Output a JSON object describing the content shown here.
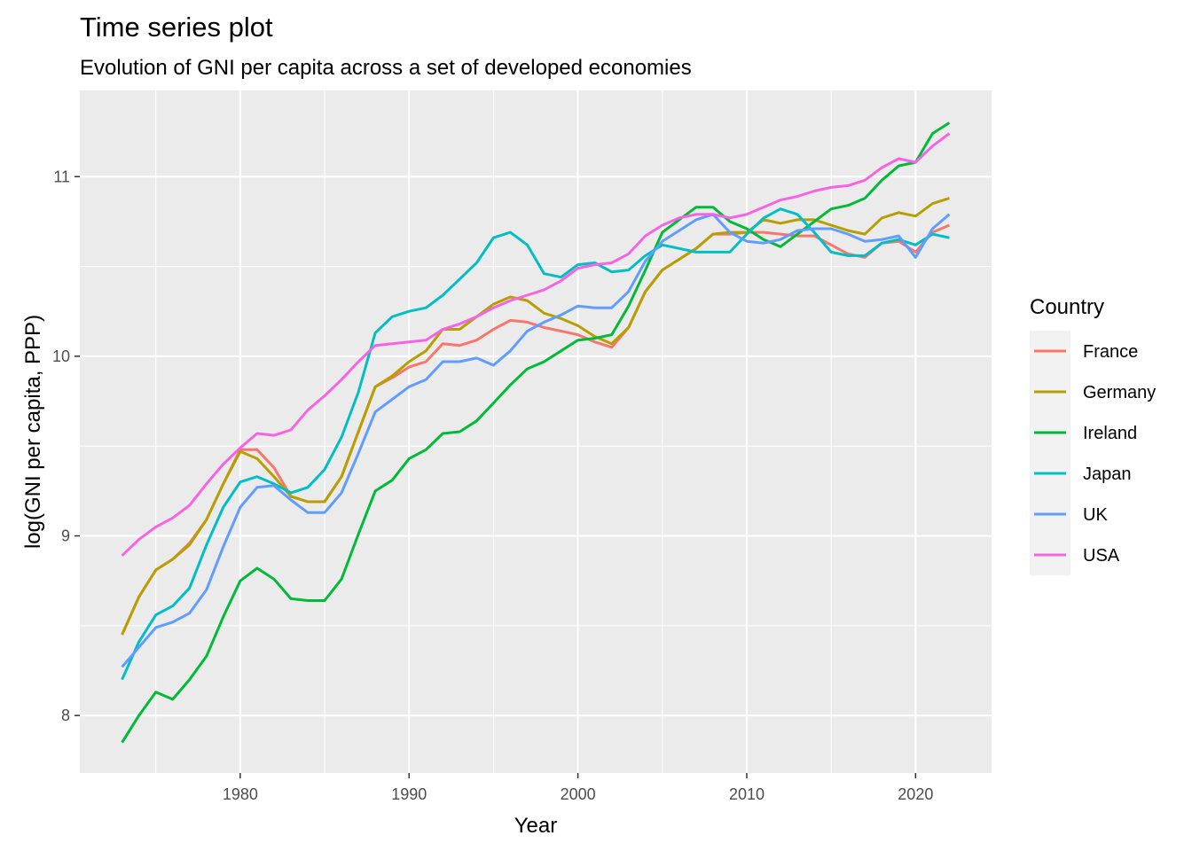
{
  "chart_data": {
    "type": "line",
    "title": "Time series plot",
    "subtitle": "Evolution of GNI per capita across a set of developed economies",
    "xlabel": "Year",
    "ylabel": "log(GNI per capita, PPP)",
    "xlim": [
      1970.5,
      2024.5
    ],
    "ylim": [
      7.68,
      11.48
    ],
    "x_ticks": [
      1980,
      1990,
      2000,
      2010,
      2020
    ],
    "y_ticks": [
      8,
      9,
      10,
      11
    ],
    "grid": true,
    "legend": {
      "title": "Country",
      "placement": "right"
    },
    "x": [
      1973,
      1974,
      1975,
      1976,
      1977,
      1978,
      1979,
      1980,
      1981,
      1982,
      1983,
      1984,
      1985,
      1986,
      1987,
      1988,
      1989,
      1990,
      1991,
      1992,
      1993,
      1994,
      1995,
      1996,
      1997,
      1998,
      1999,
      2000,
      2001,
      2002,
      2003,
      2004,
      2005,
      2006,
      2007,
      2008,
      2009,
      2010,
      2011,
      2012,
      2013,
      2014,
      2015,
      2016,
      2017,
      2018,
      2019,
      2020,
      2021,
      2022
    ],
    "series": [
      {
        "name": "France",
        "color": "#F8766D",
        "values": [
          8.45,
          8.66,
          8.81,
          8.87,
          8.96,
          9.09,
          9.29,
          9.48,
          9.48,
          9.38,
          9.22,
          9.19,
          9.19,
          9.33,
          9.58,
          9.83,
          9.88,
          9.94,
          9.97,
          10.07,
          10.06,
          10.09,
          10.15,
          10.2,
          10.19,
          10.16,
          10.14,
          10.12,
          10.08,
          10.05,
          10.16,
          10.36,
          10.48,
          10.54,
          10.6,
          10.68,
          10.68,
          10.69,
          10.69,
          10.68,
          10.67,
          10.67,
          10.62,
          10.57,
          10.55,
          10.63,
          10.64,
          10.58,
          10.69,
          10.73
        ]
      },
      {
        "name": "Germany",
        "color": "#B79F00",
        "values": [
          8.45,
          8.66,
          8.81,
          8.87,
          8.95,
          9.09,
          9.29,
          9.47,
          9.43,
          9.33,
          9.22,
          9.19,
          9.19,
          9.33,
          9.58,
          9.83,
          9.89,
          9.97,
          10.03,
          10.15,
          10.15,
          10.22,
          10.29,
          10.33,
          10.31,
          10.24,
          10.21,
          10.17,
          10.11,
          10.07,
          10.16,
          10.36,
          10.48,
          10.54,
          10.6,
          10.68,
          10.69,
          10.69,
          10.76,
          10.74,
          10.76,
          10.76,
          10.73,
          10.7,
          10.68,
          10.77,
          10.8,
          10.78,
          10.85,
          10.88
        ]
      },
      {
        "name": "Ireland",
        "color": "#00BA38",
        "values": [
          7.85,
          8.0,
          8.13,
          8.09,
          8.2,
          8.33,
          8.55,
          8.75,
          8.82,
          8.76,
          8.65,
          8.64,
          8.64,
          8.76,
          9.01,
          9.25,
          9.31,
          9.43,
          9.48,
          9.57,
          9.58,
          9.64,
          9.74,
          9.84,
          9.93,
          9.97,
          10.03,
          10.09,
          10.1,
          10.12,
          10.28,
          10.48,
          10.69,
          10.76,
          10.83,
          10.83,
          10.75,
          10.71,
          10.65,
          10.61,
          10.68,
          10.75,
          10.82,
          10.84,
          10.88,
          10.98,
          11.06,
          11.08,
          11.24,
          11.3
        ]
      },
      {
        "name": "Japan",
        "color": "#00BFC4",
        "values": [
          8.2,
          8.41,
          8.56,
          8.61,
          8.71,
          8.95,
          9.16,
          9.3,
          9.33,
          9.29,
          9.24,
          9.27,
          9.37,
          9.55,
          9.8,
          10.13,
          10.22,
          10.25,
          10.27,
          10.34,
          10.43,
          10.52,
          10.66,
          10.69,
          10.62,
          10.46,
          10.44,
          10.51,
          10.52,
          10.47,
          10.48,
          10.56,
          10.62,
          10.6,
          10.58,
          10.58,
          10.58,
          10.68,
          10.77,
          10.82,
          10.79,
          10.69,
          10.58,
          10.56,
          10.56,
          10.63,
          10.65,
          10.62,
          10.68,
          10.66
        ]
      },
      {
        "name": "UK",
        "color": "#619CFF",
        "values": [
          8.27,
          8.38,
          8.49,
          8.52,
          8.57,
          8.7,
          8.94,
          9.16,
          9.27,
          9.28,
          9.2,
          9.13,
          9.13,
          9.24,
          9.46,
          9.69,
          9.76,
          9.83,
          9.87,
          9.97,
          9.97,
          9.99,
          9.95,
          10.03,
          10.14,
          10.19,
          10.23,
          10.28,
          10.27,
          10.27,
          10.36,
          10.53,
          10.64,
          10.7,
          10.76,
          10.79,
          10.69,
          10.64,
          10.63,
          10.65,
          10.7,
          10.71,
          10.71,
          10.68,
          10.64,
          10.65,
          10.67,
          10.55,
          10.71,
          10.79
        ]
      },
      {
        "name": "USA",
        "color": "#F564E3",
        "values": [
          8.89,
          8.98,
          9.05,
          9.1,
          9.17,
          9.29,
          9.4,
          9.49,
          9.57,
          9.56,
          9.59,
          9.7,
          9.78,
          9.87,
          9.97,
          10.06,
          10.07,
          10.08,
          10.09,
          10.15,
          10.18,
          10.22,
          10.27,
          10.31,
          10.34,
          10.37,
          10.42,
          10.49,
          10.51,
          10.52,
          10.57,
          10.67,
          10.73,
          10.77,
          10.79,
          10.79,
          10.77,
          10.79,
          10.83,
          10.87,
          10.89,
          10.92,
          10.94,
          10.95,
          10.98,
          11.05,
          11.1,
          11.08,
          11.17,
          11.24
        ]
      }
    ]
  }
}
